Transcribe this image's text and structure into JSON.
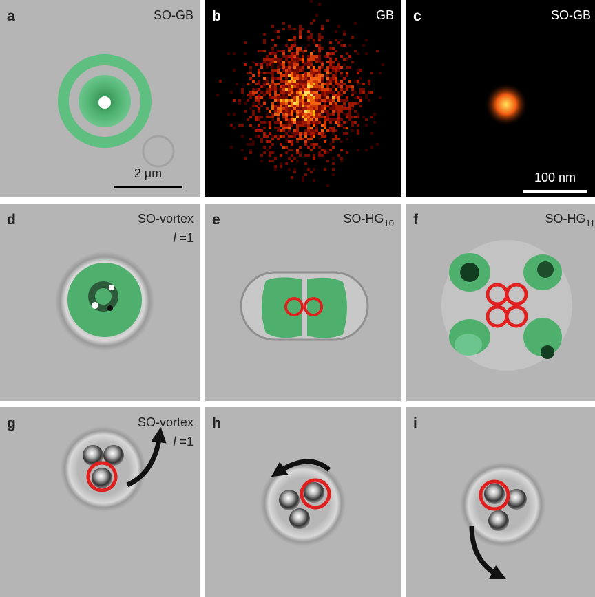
{
  "panels": [
    {
      "letter": "a",
      "label": "SO-GB",
      "scale_bar": "2 μm"
    },
    {
      "letter": "b",
      "label": "GB"
    },
    {
      "letter": "c",
      "label": "SO-GB",
      "scale_bar": "100 nm"
    },
    {
      "letter": "d",
      "label": "SO-vortex",
      "mode_symbol": "l",
      "mode_value": "=1"
    },
    {
      "letter": "e",
      "label": "SO-HG",
      "subscript": "10"
    },
    {
      "letter": "f",
      "label": "SO-HG",
      "subscript": "11"
    },
    {
      "letter": "g",
      "label": "SO-vortex",
      "mode_symbol": "l",
      "mode_value": "=1"
    },
    {
      "letter": "h"
    },
    {
      "letter": "i"
    }
  ]
}
